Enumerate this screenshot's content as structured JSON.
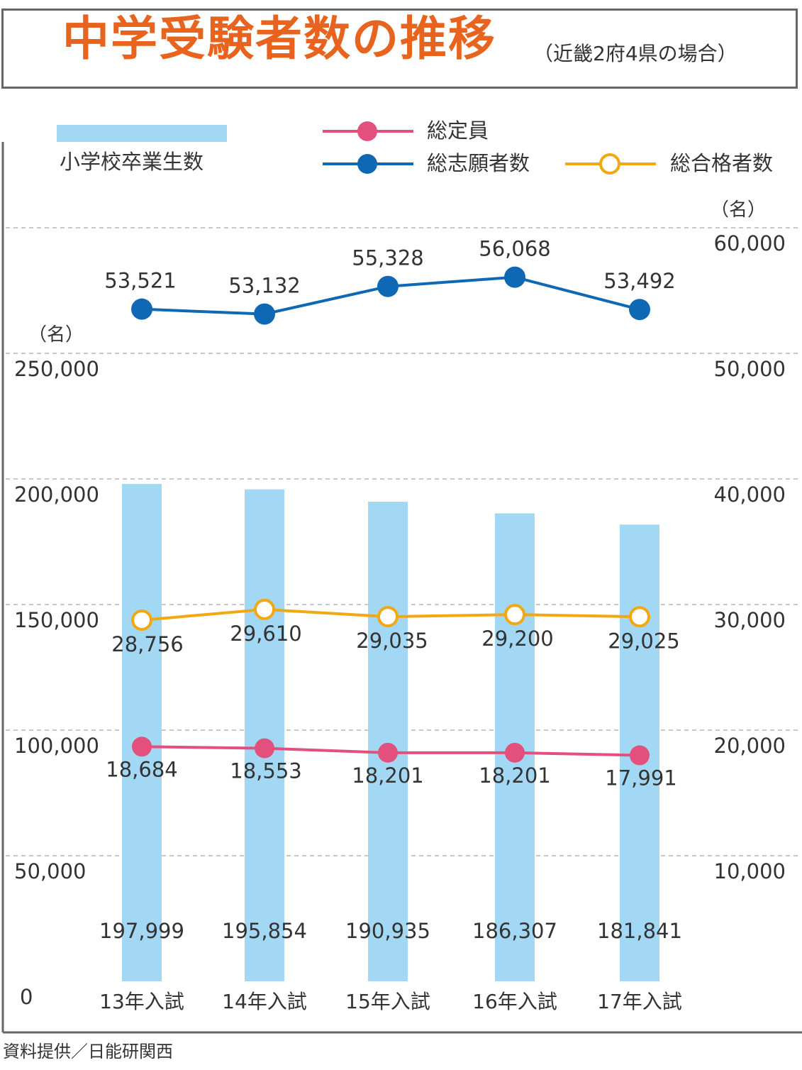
{
  "title": "中学受験者数の推移",
  "subtitle": "（近畿2府4県の場合）",
  "credit": "資料提供／日能研関西",
  "left_unit": "（名）",
  "right_unit": "（名）",
  "legend": {
    "graduates": "小学校卒業生数",
    "capacity": "総定員",
    "applicants": "総志願者数",
    "passed": "総合格者数"
  },
  "colors": {
    "bar": "#a3d8f4",
    "capacity": "#e4507e",
    "applicants": "#0f68b4",
    "passed": "#f3a812",
    "grid": "#b5b5b5"
  },
  "chart_data": {
    "type": "bar+line",
    "categories": [
      "13年入試",
      "14年入試",
      "15年入試",
      "16年入試",
      "17年入試"
    ],
    "left_axis": {
      "ylim": [
        0,
        250000
      ],
      "ticks": [
        "0",
        "50,000",
        "100,000",
        "150,000",
        "200,000",
        "250,000"
      ]
    },
    "right_axis": {
      "ylim": [
        0,
        60000
      ],
      "ticks": [
        "10,000",
        "20,000",
        "30,000",
        "40,000",
        "50,000",
        "60,000"
      ]
    },
    "grid": true,
    "legend_position": "top",
    "series": [
      {
        "key": "graduates",
        "name": "小学校卒業生数",
        "kind": "bar",
        "axis": "left",
        "values": [
          197999,
          195854,
          190935,
          186307,
          181841
        ],
        "labels": [
          "197,999",
          "195,854",
          "190,935",
          "186,307",
          "181,841"
        ]
      },
      {
        "key": "applicants",
        "name": "総志願者数",
        "kind": "line",
        "axis": "right",
        "values": [
          53521,
          53132,
          55328,
          56068,
          53492
        ],
        "labels": [
          "53,521",
          "53,132",
          "55,328",
          "56,068",
          "53,492"
        ]
      },
      {
        "key": "passed",
        "name": "総合格者数",
        "kind": "line",
        "axis": "right",
        "values": [
          28756,
          29610,
          29035,
          29200,
          29025
        ],
        "labels": [
          "28,756",
          "29,610",
          "29,035",
          "29,200",
          "29,025"
        ]
      },
      {
        "key": "capacity",
        "name": "総定員",
        "kind": "line",
        "axis": "right",
        "values": [
          18684,
          18553,
          18201,
          18201,
          17991
        ],
        "labels": [
          "18,684",
          "18,553",
          "18,201",
          "18,201",
          "17,991"
        ]
      }
    ]
  }
}
